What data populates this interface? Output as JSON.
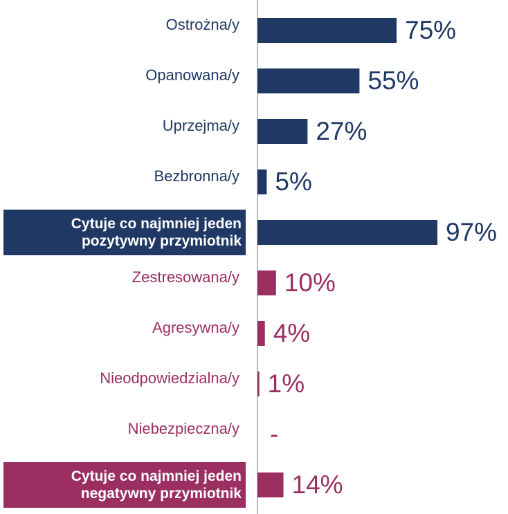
{
  "chart_data": {
    "type": "bar",
    "orientation": "horizontal",
    "categories": [
      "Ostrożna/y",
      "Opanowana/y",
      "Uprzejma/y",
      "Bezbronna/y",
      "Cytuje co najmniej jeden pozytywny przymiotnik",
      "Zestresowana/y",
      "Agresywna/y",
      "Nieodpowiedzialna/y",
      "Niebezpieczna/y",
      "Cytuje co najmniej jeden negatywny przymiotnik"
    ],
    "values": [
      75,
      55,
      27,
      5,
      97,
      10,
      4,
      1,
      null,
      14
    ],
    "value_labels": [
      "75%",
      "55%",
      "27%",
      "5%",
      "97%",
      "10%",
      "4%",
      "1%",
      "-",
      "14%"
    ],
    "colors": [
      "#1f3864",
      "#1f3864",
      "#1f3864",
      "#1f3864",
      "#1f3864",
      "#9b2f62",
      "#9b2f62",
      "#9b2f62",
      "#9b2f62",
      "#9b2f62"
    ],
    "highlighted": [
      false,
      false,
      false,
      false,
      true,
      false,
      false,
      false,
      false,
      true
    ],
    "xlim": [
      0,
      100
    ]
  }
}
